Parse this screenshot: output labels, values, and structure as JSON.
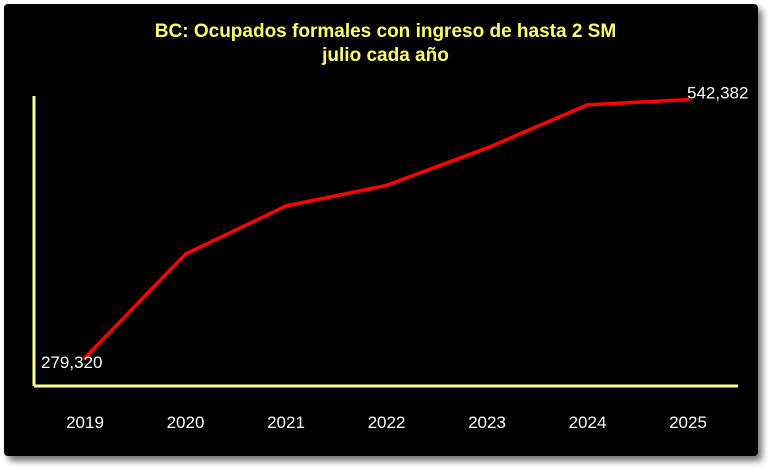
{
  "chart_data": {
    "type": "line",
    "title": "BC: Ocupados formales con ingreso de hasta 2 SM",
    "subtitle": "julio cada año",
    "xlabel": "",
    "ylabel": "",
    "categories": [
      "2019",
      "2020",
      "2021",
      "2022",
      "2023",
      "2024",
      "2025"
    ],
    "series": [
      {
        "values": [
          279320,
          385000,
          434000,
          455000,
          493000,
          537000,
          542382
        ]
      }
    ],
    "data_labels": [
      {
        "index": 0,
        "text": "279,320"
      },
      {
        "index": 6,
        "text": "542,382"
      }
    ],
    "ylim": [
      270000,
      545000
    ],
    "grid": false,
    "legend": "none",
    "colors": {
      "background": "#000000",
      "line": "#ff0000",
      "axis": "#ffff99",
      "title": "#ffff66",
      "text": "#ffffff"
    }
  }
}
